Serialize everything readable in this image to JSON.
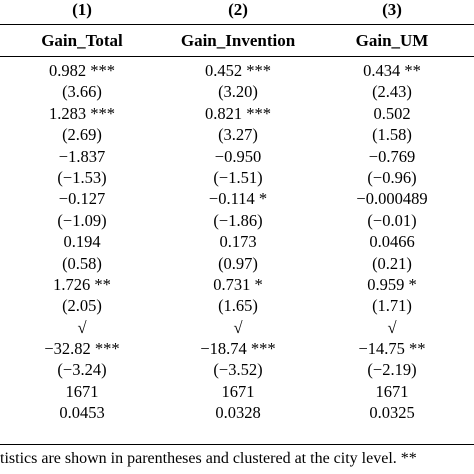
{
  "table": {
    "column_numbers": [
      "(1)",
      "(2)",
      "(3)"
    ],
    "column_headers": [
      "Gain_Total",
      "Gain_Invention",
      "Gain_UM"
    ],
    "rows": [
      [
        "0.982 ***",
        "0.452 ***",
        "0.434 **"
      ],
      [
        "(3.66)",
        "(3.20)",
        "(2.43)"
      ],
      [
        "1.283 ***",
        "0.821 ***",
        "0.502"
      ],
      [
        "(2.69)",
        "(3.27)",
        "(1.58)"
      ],
      [
        "−1.837",
        "−0.950",
        "−0.769"
      ],
      [
        "(−1.53)",
        "(−1.51)",
        "(−0.96)"
      ],
      [
        "−0.127",
        "−0.114 *",
        "−0.000489"
      ],
      [
        "(−1.09)",
        "(−1.86)",
        "(−0.01)"
      ],
      [
        "0.194",
        "0.173",
        "0.0466"
      ],
      [
        "(0.58)",
        "(0.97)",
        "(0.21)"
      ],
      [
        "1.726 **",
        "0.731 *",
        "0.959 *"
      ],
      [
        "(2.05)",
        "(1.65)",
        "(1.71)"
      ],
      [
        "√",
        "√",
        "√"
      ],
      [
        "−32.82 ***",
        "−18.74 ***",
        "−14.75 **"
      ],
      [
        "(−3.24)",
        "(−3.52)",
        "(−2.19)"
      ],
      [
        "1671",
        "1671",
        "1671"
      ],
      [
        "0.0453",
        "0.0328",
        "0.0325"
      ]
    ],
    "footnote": "tistics are shown in parentheses and clustered at the city level. **"
  }
}
